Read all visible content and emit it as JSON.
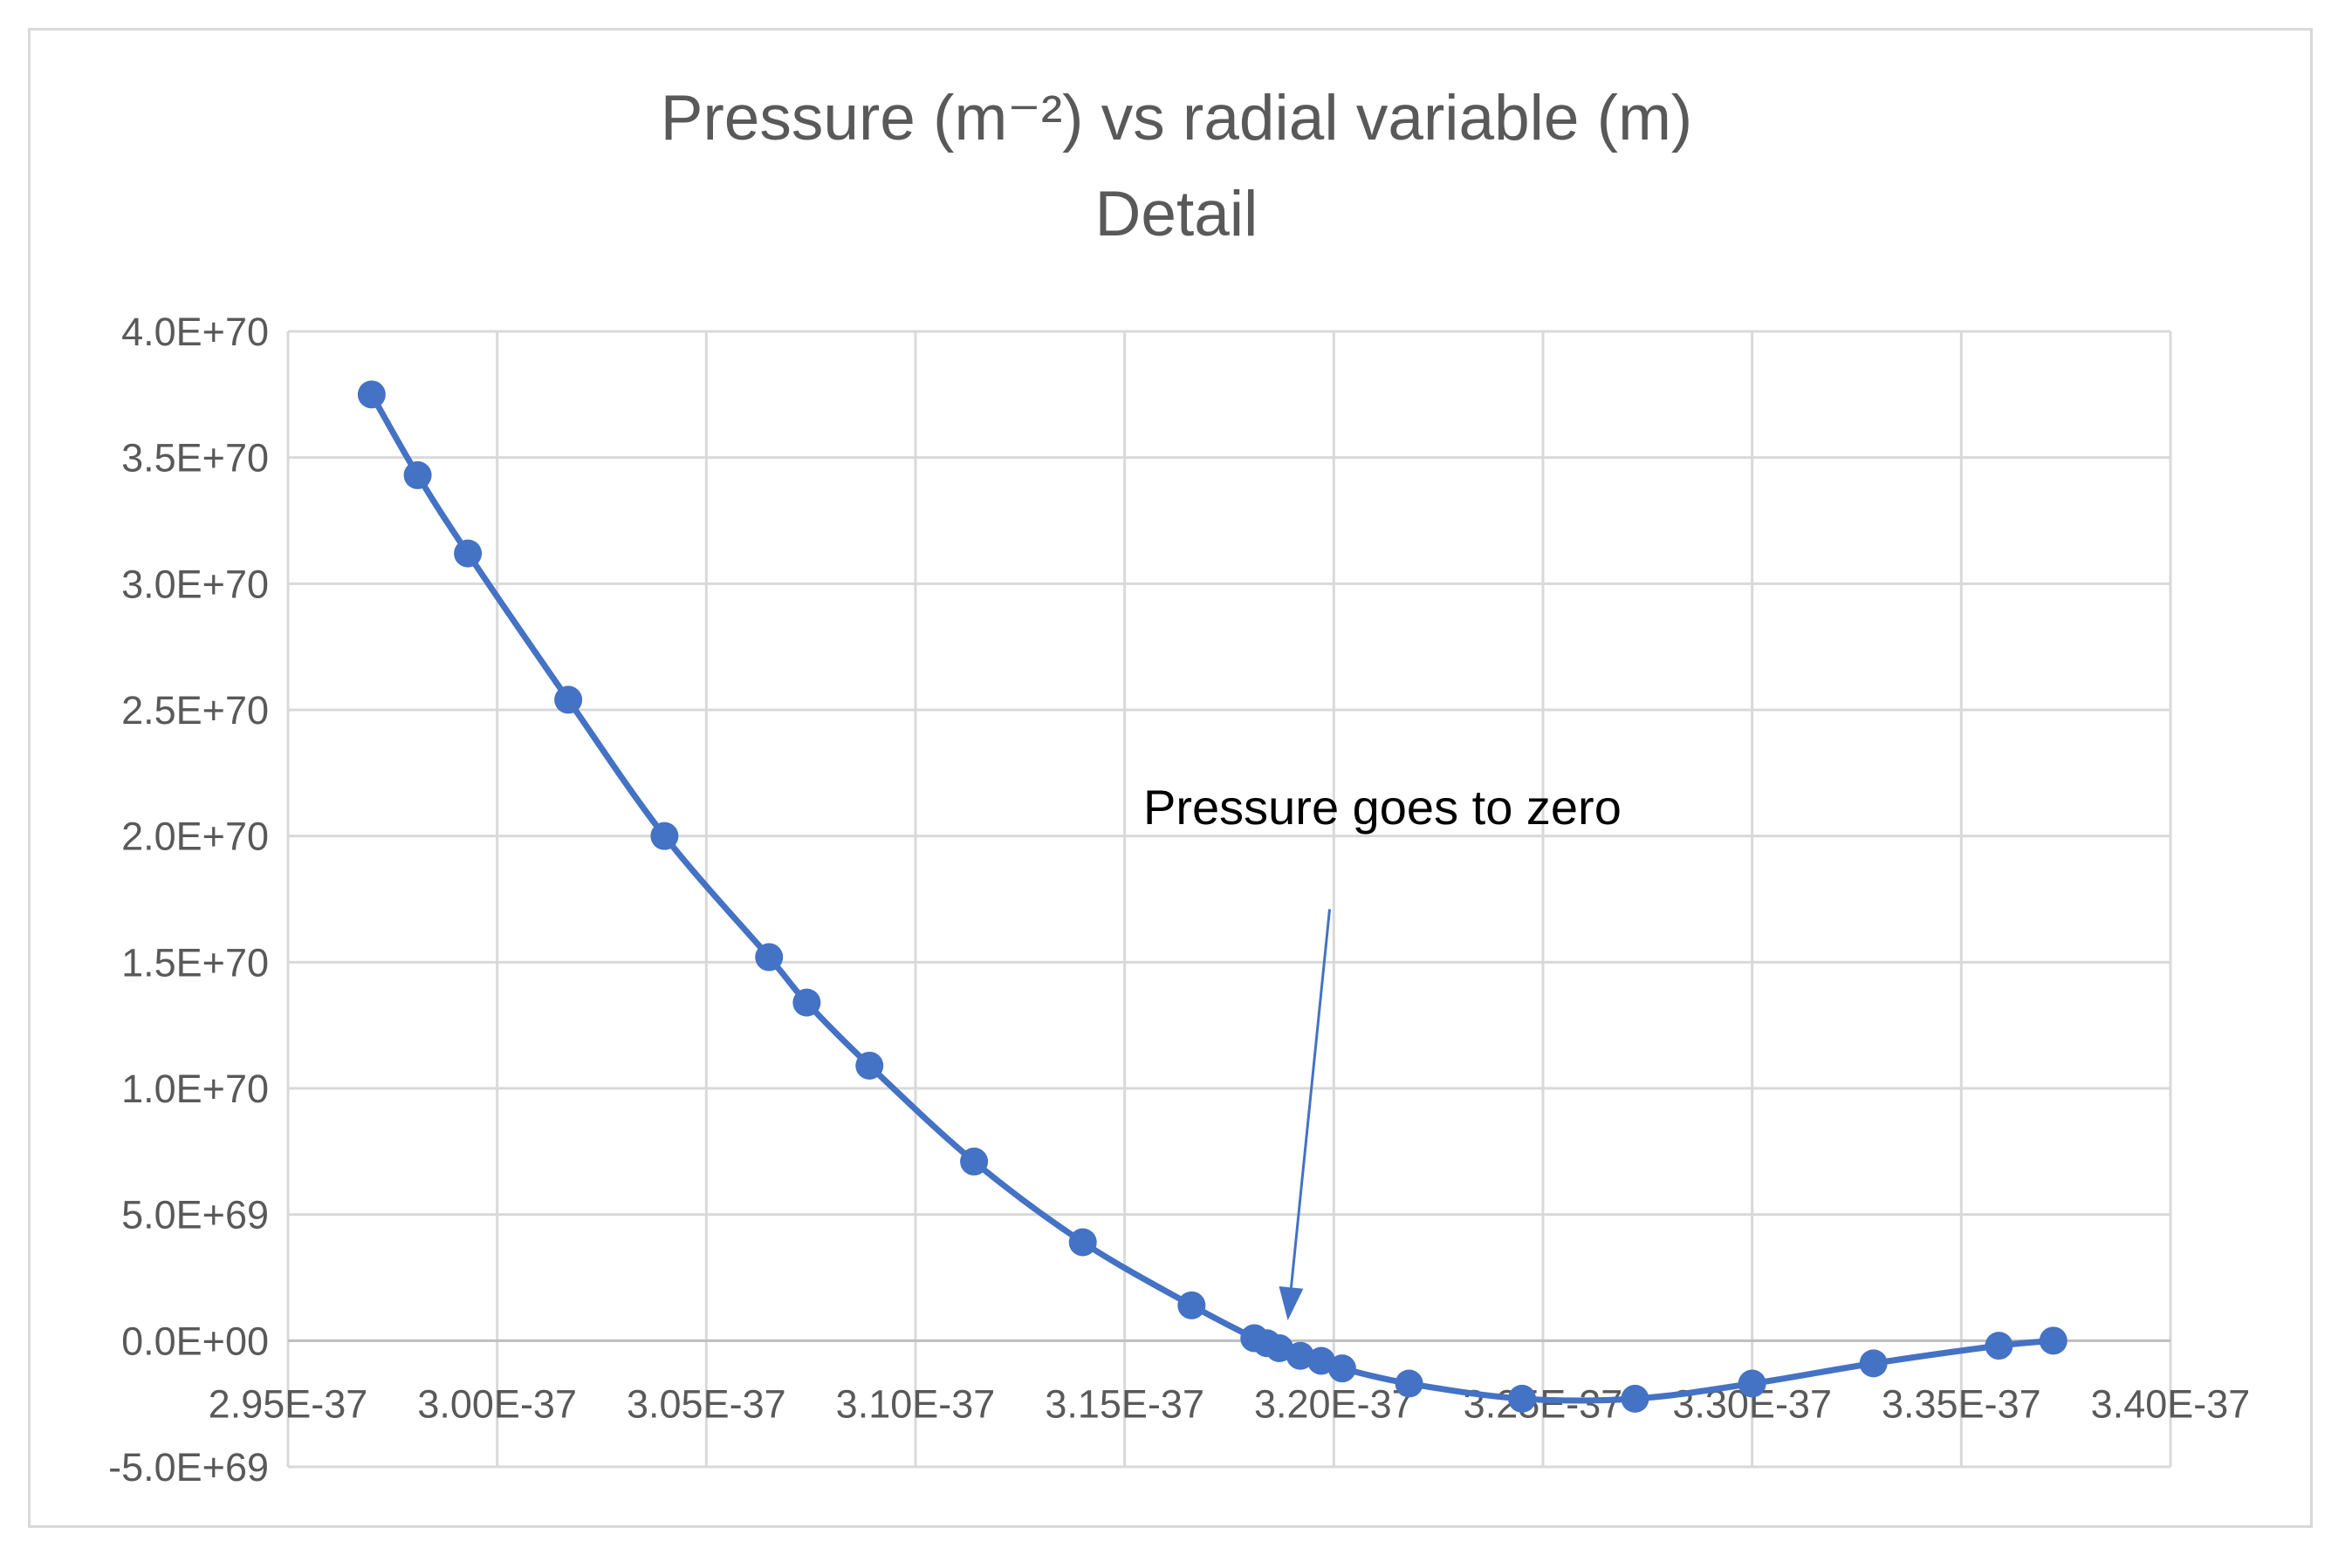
{
  "chart_data": {
    "type": "scatter",
    "title": "Pressure (m⁻²) vs radial variable (m)",
    "subtitle": "Detail",
    "xlabel": "",
    "ylabel": "",
    "xlim": [
      2.95e-37,
      3.4e-37
    ],
    "ylim": [
      -5e+69,
      4e+70
    ],
    "grid": true,
    "legend": "none",
    "x_tick_values": [
      2.95e-37,
      3e-37,
      3.05e-37,
      3.1e-37,
      3.15e-37,
      3.2e-37,
      3.25e-37,
      3.3e-37,
      3.35e-37,
      3.4e-37
    ],
    "x_tick_labels": [
      "2.95E-37",
      "3.00E-37",
      "3.05E-37",
      "3.10E-37",
      "3.15E-37",
      "3.20E-37",
      "3.25E-37",
      "3.30E-37",
      "3.35E-37",
      "3.40E-37"
    ],
    "y_tick_values": [
      -5e+69,
      0,
      5e+69,
      1e+70,
      1.5e+70,
      2e+70,
      2.5e+70,
      3e+70,
      3.5e+70,
      4e+70
    ],
    "y_tick_labels": [
      "-5.0E+69",
      "0.0E+00",
      "5.0E+69",
      "1.0E+70",
      "1.5E+70",
      "2.0E+70",
      "2.5E+70",
      "3.0E+70",
      "3.5E+70",
      "4.0E+70"
    ],
    "series": [
      {
        "name": "Pressure",
        "color": "#4472c4",
        "marker": "circle",
        "line": "smooth",
        "x": [
          2.97e-37,
          2.981e-37,
          2.993e-37,
          3.017e-37,
          3.04e-37,
          3.065e-37,
          3.074e-37,
          3.089e-37,
          3.114e-37,
          3.14e-37,
          3.166e-37,
          3.181e-37,
          3.184e-37,
          3.187e-37,
          3.192e-37,
          3.197e-37,
          3.202e-37,
          3.218e-37,
          3.245e-37,
          3.272e-37,
          3.3e-37,
          3.329e-37,
          3.359e-37,
          3.372e-37
        ],
        "y": [
          3.75e+70,
          3.43e+70,
          3.12e+70,
          2.54e+70,
          2e+70,
          1.52e+70,
          1.34e+70,
          1.09e+70,
          7.1e+69,
          3.9e+69,
          1.4e+69,
          1e+68,
          -1e+68,
          -3e+68,
          -6e+68,
          -8e+68,
          -1.1e+69,
          -1.7e+69,
          -2.3e+69,
          -2.3e+69,
          -1.7e+69,
          -9e+68,
          -2e+68,
          0
        ]
      }
    ],
    "annotations": [
      {
        "text": "Pressure goes to zero",
        "arrow_from": [
          3.199e-37,
          1.71e+70
        ],
        "arrow_to": [
          3.189e-37,
          8e+68
        ]
      }
    ]
  }
}
